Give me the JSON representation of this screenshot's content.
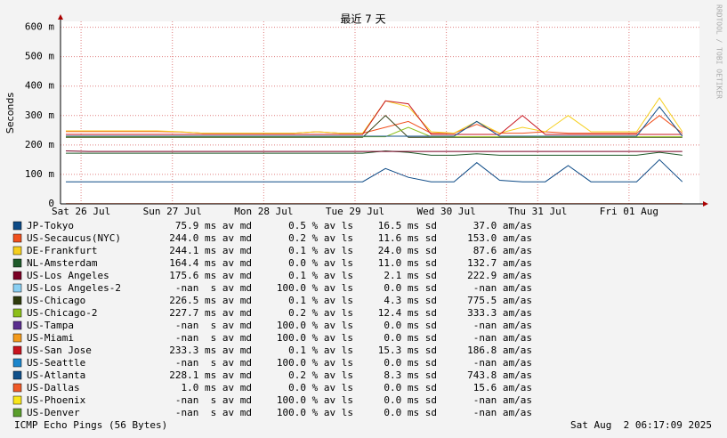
{
  "chart_data": {
    "type": "line",
    "title": "最近 7 天",
    "y_label": "Seconds",
    "footer": "ICMP Echo Pings (56 Bytes)",
    "timestamp": "Sat Aug  2 06:17:09 2025",
    "watermark": "RRDTOOL / TOBI OETIKER",
    "ylim": [
      0,
      620
    ],
    "yticks": [
      0,
      {
        "value": 100,
        "label": "100 m"
      },
      {
        "value": 200,
        "label": "200 m"
      },
      {
        "value": 300,
        "label": "300 m"
      },
      {
        "value": 400,
        "label": "400 m"
      },
      {
        "value": 500,
        "label": "500 m"
      },
      {
        "value": 600,
        "label": "600 m"
      }
    ],
    "xlim": [
      -5.4,
      162.5
    ],
    "xticks": [
      {
        "value": 0,
        "label": "Sat 26 Jul"
      },
      {
        "value": 24,
        "label": "Sun 27 Jul"
      },
      {
        "value": 48,
        "label": "Mon 28 Jul"
      },
      {
        "value": 72,
        "label": "Tue 29 Jul"
      },
      {
        "value": 96,
        "label": "Wed 30 Jul"
      },
      {
        "value": 120,
        "label": "Thu 31 Jul"
      },
      {
        "value": 144,
        "label": "Fri 01 Aug"
      }
    ],
    "grid": true,
    "x": [
      -4,
      2,
      8,
      14,
      20,
      26,
      32,
      38,
      44,
      50,
      56,
      62,
      68,
      74,
      80,
      86,
      92,
      98,
      104,
      110,
      116,
      122,
      128,
      134,
      140,
      146,
      152,
      158
    ],
    "series": [
      {
        "name": "JP-Tokyo",
        "color": "#0d4a86",
        "stats": [
          "75.9 ms av md",
          "0.5 % av ls",
          "16.5 ms sd",
          "37.0 am/as"
        ],
        "values": [
          75,
          75,
          75,
          75,
          75,
          75,
          75,
          75,
          75,
          75,
          75,
          75,
          75,
          75,
          120,
          90,
          75,
          75,
          140,
          80,
          75,
          75,
          130,
          75,
          75,
          75,
          150,
          75
        ]
      },
      {
        "name": "US-Secaucus(NYC)",
        "color": "#f0501e",
        "stats": [
          "244.0 ms av md",
          "0.2 % av ls",
          "11.6 ms sd",
          "153.0 am/as"
        ],
        "values": [
          246,
          246,
          246,
          246,
          246,
          244,
          240,
          240,
          240,
          240,
          240,
          245,
          240,
          240,
          260,
          280,
          240,
          240,
          270,
          240,
          240,
          245,
          240,
          240,
          240,
          240,
          300,
          240
        ]
      },
      {
        "name": "DE-Frankfurt",
        "color": "#f5cf1e",
        "stats": [
          "244.1 ms av md",
          "0.1 % av ls",
          "24.0 ms sd",
          "87.6 am/as"
        ],
        "values": [
          248,
          248,
          248,
          248,
          248,
          245,
          240,
          240,
          240,
          240,
          240,
          245,
          240,
          240,
          350,
          330,
          245,
          240,
          280,
          240,
          260,
          245,
          300,
          245,
          245,
          245,
          360,
          245
        ]
      },
      {
        "name": "NL-Amsterdam",
        "color": "#1f5a2a",
        "stats": [
          "164.4 ms av md",
          "0.0 % av ls",
          "11.0 ms sd",
          "132.7 am/as"
        ],
        "values": [
          172,
          172,
          172,
          172,
          172,
          172,
          172,
          172,
          172,
          172,
          172,
          172,
          172,
          172,
          180,
          175,
          165,
          165,
          170,
          165,
          165,
          165,
          165,
          165,
          165,
          165,
          175,
          165
        ]
      },
      {
        "name": "US-Los Angeles",
        "color": "#7a0024",
        "stats": [
          "175.6 ms av md",
          "0.1 % av ls",
          "2.1 ms sd",
          "222.9 am/as"
        ],
        "values": [
          180,
          178,
          178,
          178,
          178,
          178,
          178,
          178,
          178,
          178,
          178,
          178,
          178,
          178,
          178,
          178,
          178,
          178,
          178,
          178,
          178,
          178,
          178,
          178,
          178,
          178,
          178,
          178
        ]
      },
      {
        "name": "US-Los Angeles-2",
        "color": "#8acff2",
        "stats": [
          "-nan  s av md",
          "100.0 % av ls",
          "0.0 ms sd",
          "-nan am/as"
        ],
        "values": [
          null,
          null,
          null,
          null,
          null,
          null,
          null,
          null,
          null,
          null,
          null,
          null,
          null,
          null,
          null,
          null,
          null,
          null,
          null,
          null,
          null,
          null,
          null,
          null,
          null,
          null,
          null,
          null
        ]
      },
      {
        "name": "US-Chicago",
        "color": "#2e3a0c",
        "stats": [
          "226.5 ms av md",
          "0.1 % av ls",
          "4.3 ms sd",
          "775.5 am/as"
        ],
        "values": [
          226,
          226,
          226,
          226,
          226,
          226,
          226,
          226,
          226,
          226,
          226,
          226,
          226,
          226,
          300,
          226,
          226,
          226,
          226,
          226,
          226,
          226,
          226,
          226,
          226,
          226,
          226,
          226
        ]
      },
      {
        "name": "US-Chicago-2",
        "color": "#8cbf1a",
        "stats": [
          "227.7 ms av md",
          "0.2 % av ls",
          "12.4 ms sd",
          "333.3 am/as"
        ],
        "values": [
          228,
          228,
          228,
          228,
          228,
          228,
          228,
          228,
          228,
          228,
          228,
          228,
          228,
          228,
          228,
          260,
          228,
          228,
          228,
          228,
          228,
          228,
          228,
          228,
          228,
          228,
          228,
          228
        ]
      },
      {
        "name": "US-Tampa",
        "color": "#5a2d8e",
        "stats": [
          "-nan  s av md",
          "100.0 % av ls",
          "0.0 ms sd",
          "-nan am/as"
        ],
        "values": [
          null,
          null,
          null,
          null,
          null,
          null,
          null,
          null,
          null,
          null,
          null,
          null,
          null,
          null,
          null,
          null,
          null,
          null,
          null,
          null,
          null,
          null,
          null,
          null,
          null,
          null,
          null,
          null
        ]
      },
      {
        "name": "US-Miami",
        "color": "#f39a1c",
        "stats": [
          "-nan  s av md",
          "100.0 % av ls",
          "0.0 ms sd",
          "-nan am/as"
        ],
        "values": [
          null,
          null,
          null,
          null,
          null,
          null,
          null,
          null,
          null,
          null,
          null,
          null,
          null,
          null,
          null,
          null,
          null,
          null,
          null,
          null,
          null,
          null,
          null,
          null,
          null,
          null,
          null,
          null
        ]
      },
      {
        "name": "US-San Jose",
        "color": "#c8141e",
        "stats": [
          "233.3 ms av md",
          "0.1 % av ls",
          "15.3 ms sd",
          "186.8 am/as"
        ],
        "values": [
          236,
          236,
          236,
          236,
          236,
          236,
          236,
          236,
          236,
          236,
          236,
          236,
          236,
          236,
          350,
          340,
          236,
          236,
          236,
          236,
          300,
          236,
          236,
          236,
          236,
          236,
          236,
          236
        ]
      },
      {
        "name": "US-Seattle",
        "color": "#1c86cc",
        "stats": [
          "-nan  s av md",
          "100.0 % av ls",
          "0.0 ms sd",
          "-nan am/as"
        ],
        "values": [
          null,
          null,
          null,
          null,
          null,
          null,
          null,
          null,
          null,
          null,
          null,
          null,
          null,
          null,
          null,
          null,
          null,
          null,
          null,
          null,
          null,
          null,
          null,
          null,
          null,
          null,
          null,
          null
        ]
      },
      {
        "name": "US-Atlanta",
        "color": "#10508a",
        "stats": [
          "228.1 ms av md",
          "0.2 % av ls",
          "8.3 ms sd",
          "743.8 am/as"
        ],
        "values": [
          230,
          230,
          230,
          230,
          230,
          230,
          230,
          230,
          230,
          230,
          230,
          230,
          230,
          230,
          230,
          230,
          230,
          230,
          280,
          230,
          230,
          230,
          230,
          230,
          230,
          230,
          330,
          230
        ]
      },
      {
        "name": "US-Dallas",
        "color": "#f05a28",
        "stats": [
          "1.0 ms av md",
          "0.0 % av ls",
          "0.0 ms sd",
          "15.6 am/as"
        ],
        "values": [
          1,
          1,
          1,
          1,
          1,
          1,
          1,
          1,
          1,
          1,
          1,
          1,
          1,
          1,
          1,
          1,
          1,
          1,
          1,
          1,
          1,
          1,
          1,
          1,
          1,
          1,
          1,
          1
        ]
      },
      {
        "name": "US-Phoenix",
        "color": "#f8e61a",
        "stats": [
          "-nan  s av md",
          "100.0 % av ls",
          "0.0 ms sd",
          "-nan am/as"
        ],
        "values": [
          null,
          null,
          null,
          null,
          null,
          null,
          null,
          null,
          null,
          null,
          null,
          null,
          null,
          null,
          null,
          null,
          null,
          null,
          null,
          null,
          null,
          null,
          null,
          null,
          null,
          null,
          null,
          null
        ]
      },
      {
        "name": "US-Denver",
        "color": "#5a9e2c",
        "stats": [
          "-nan  s av md",
          "100.0 % av ls",
          "0.0 ms sd",
          "-nan am/as"
        ],
        "values": [
          null,
          null,
          null,
          null,
          null,
          null,
          null,
          null,
          null,
          null,
          null,
          null,
          null,
          null,
          null,
          null,
          null,
          null,
          null,
          null,
          null,
          null,
          null,
          null,
          null,
          null,
          null,
          null
        ]
      }
    ]
  }
}
